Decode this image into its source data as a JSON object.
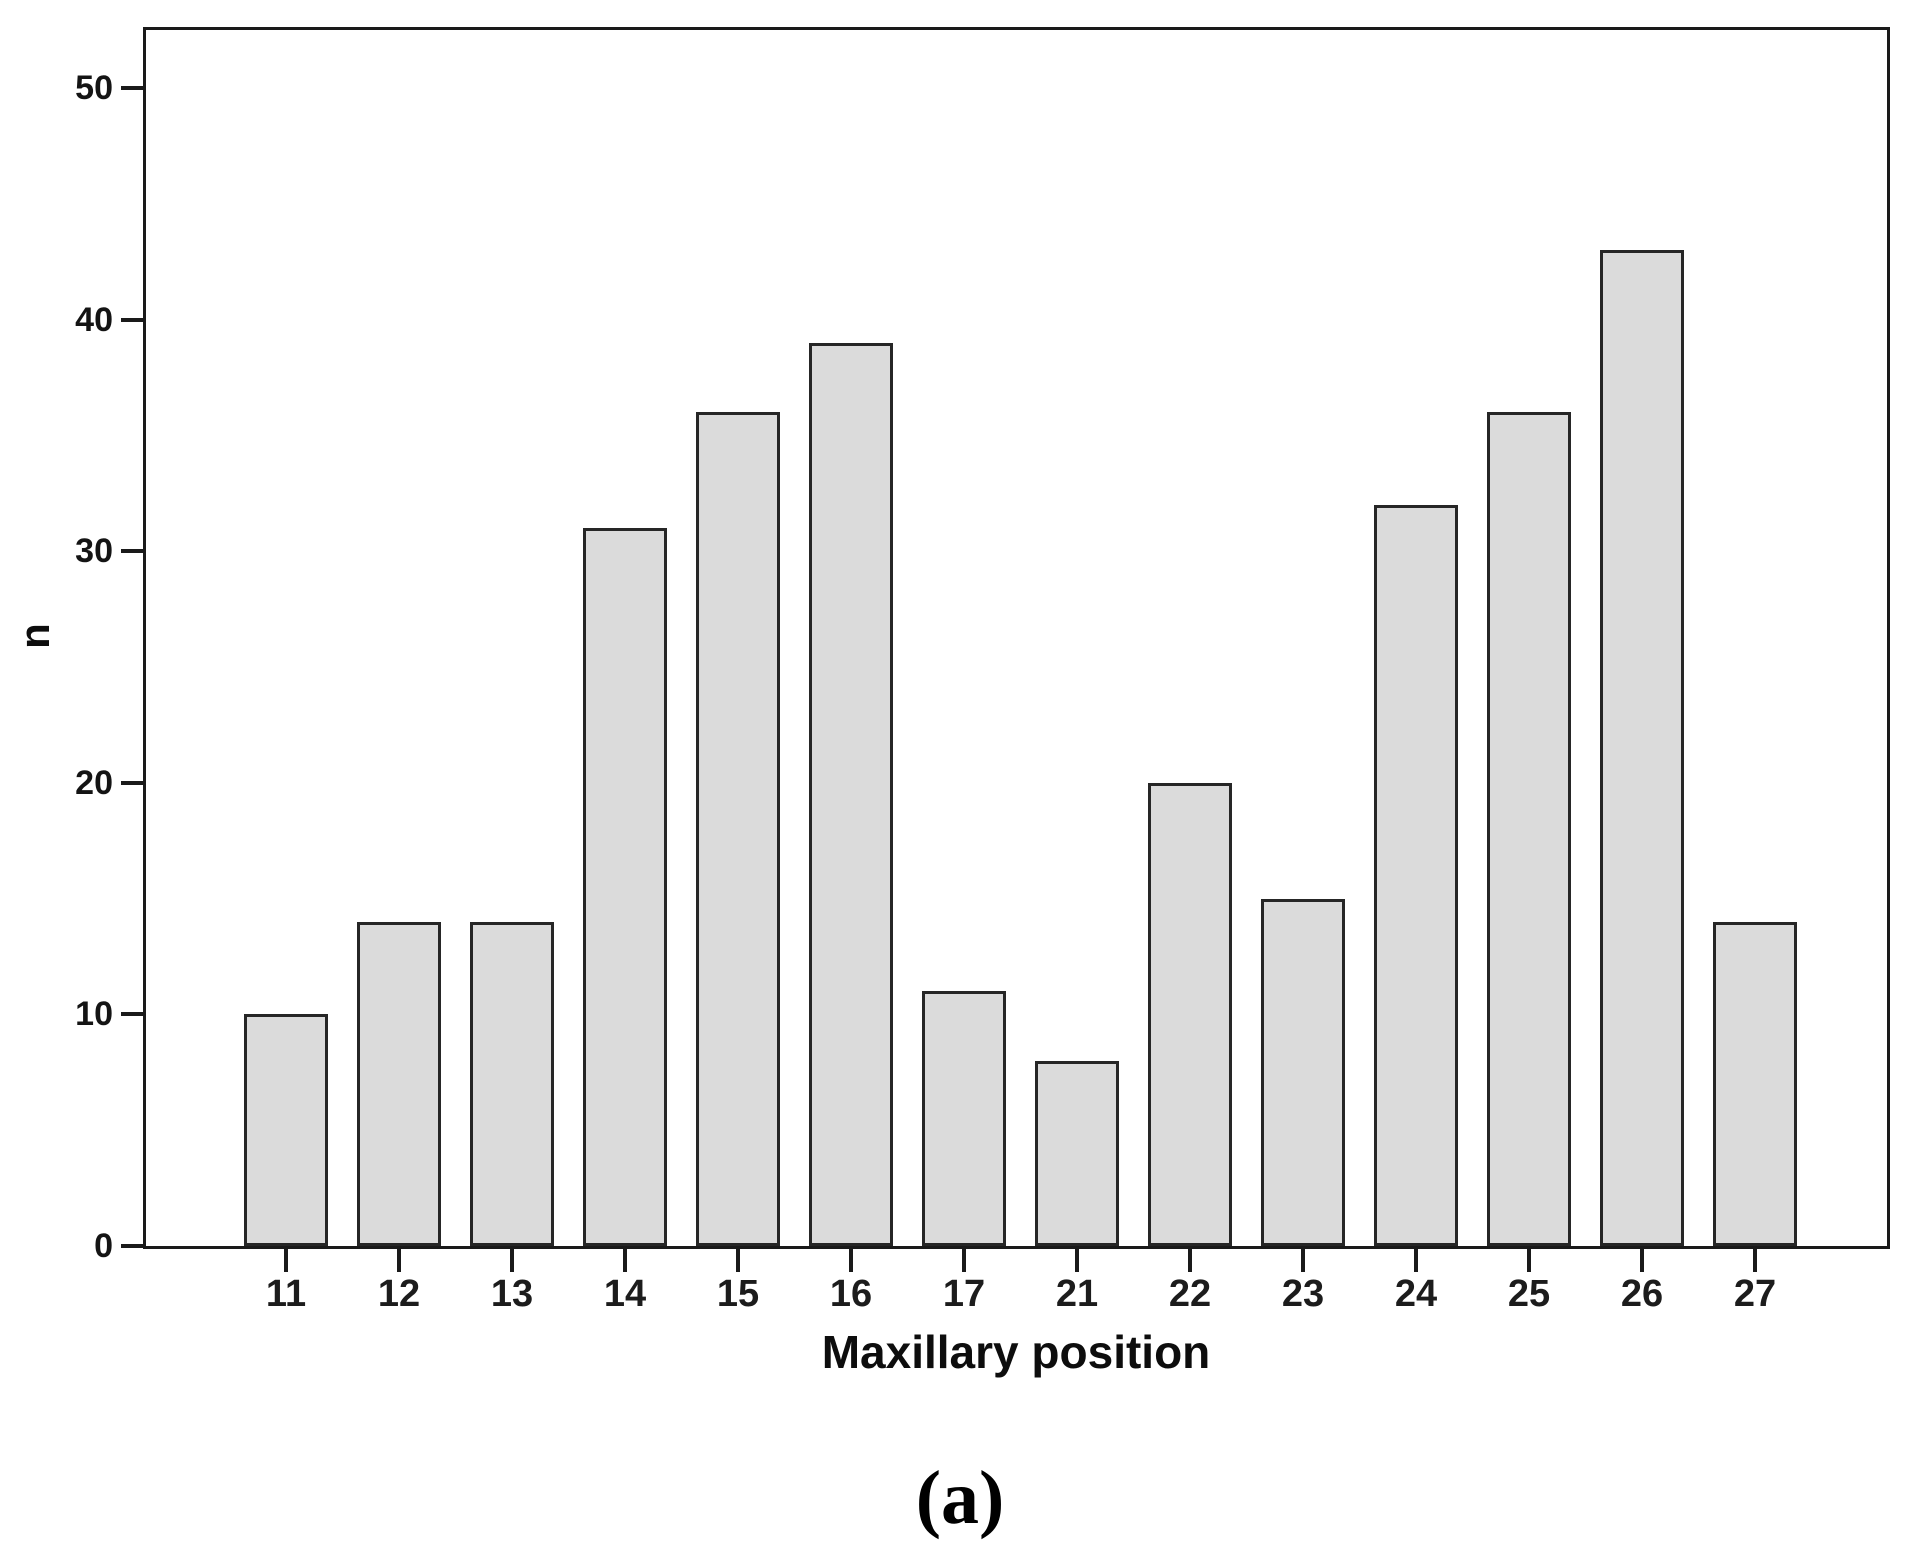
{
  "figure": {
    "caption": "(a)"
  },
  "chart_data": {
    "type": "bar",
    "title": "",
    "xlabel": "Maxillary position",
    "ylabel": "n",
    "categories": [
      "11",
      "12",
      "13",
      "14",
      "15",
      "16",
      "17",
      "21",
      "22",
      "23",
      "24",
      "25",
      "26",
      "27"
    ],
    "values": [
      10,
      14,
      14,
      31,
      36,
      39,
      11,
      8,
      20,
      15,
      32,
      36,
      43,
      14
    ],
    "yticks": [
      0,
      10,
      20,
      30,
      40,
      50
    ],
    "ylim": [
      0,
      52.5
    ],
    "grid": false,
    "legend": "none",
    "bar_fill": "#dbdbdb",
    "bar_border": "#262626",
    "axis_color": "#1a1a1a"
  }
}
